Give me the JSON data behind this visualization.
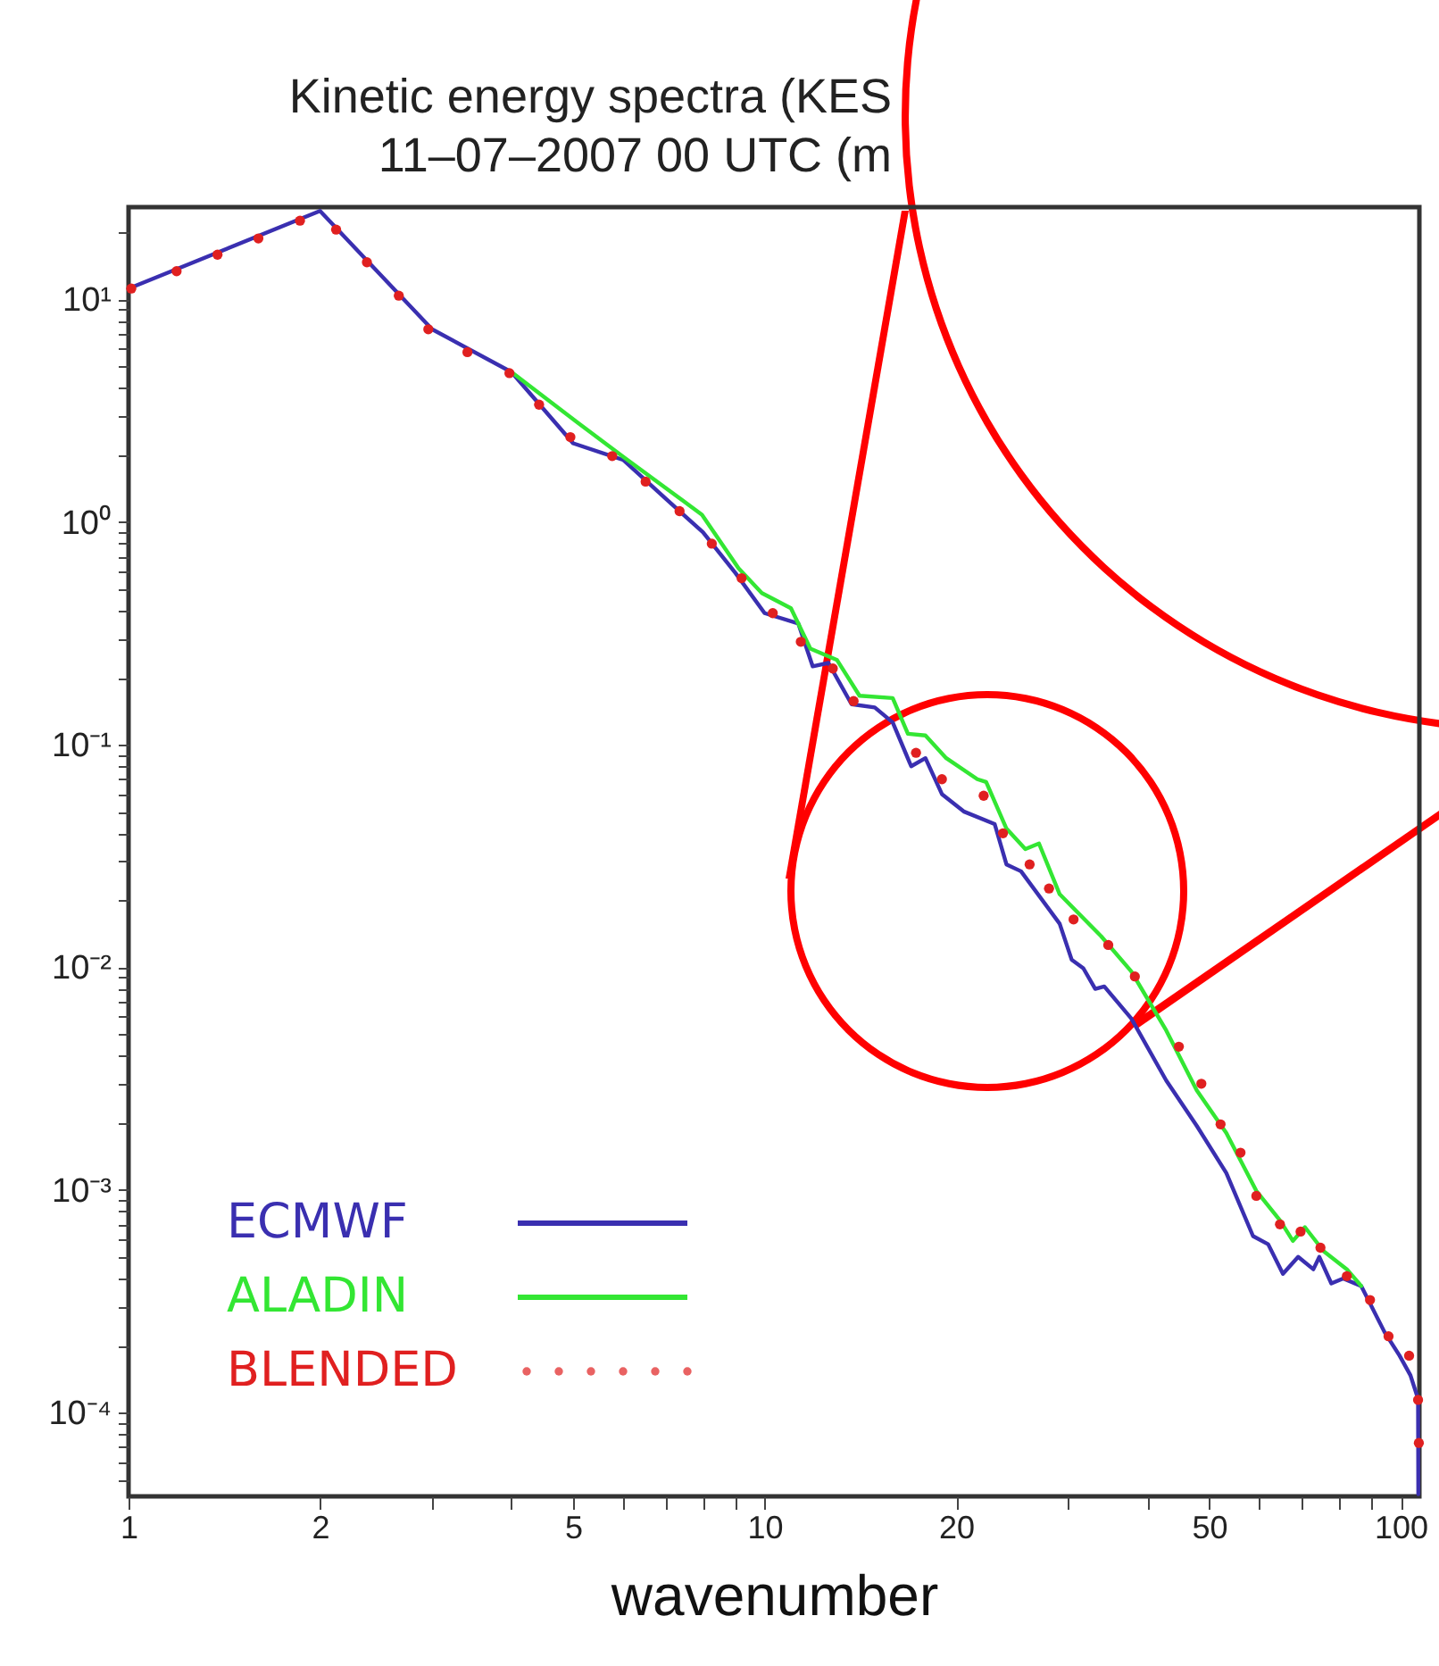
{
  "chart_data": {
    "type": "line",
    "title": "Kinetic energy spectra (KES",
    "subtitle": "11–07–2007 00 UTC (m",
    "xlabel": "wavenumber",
    "log": "xy",
    "legend": "bottom left",
    "xlim": [
      1,
      107
    ],
    "ylim": [
      4.2e-05,
      26
    ],
    "xticks": [
      1,
      2,
      {
        "value": 3,
        "label": null
      },
      {
        "value": 4,
        "label": null
      },
      5,
      {
        "value": 6,
        "label": null
      },
      {
        "value": 7,
        "label": null
      },
      {
        "value": 8,
        "label": null
      },
      {
        "value": 9,
        "label": null
      },
      10,
      20,
      {
        "value": 30,
        "label": null
      },
      {
        "value": 40,
        "label": null
      },
      50,
      {
        "value": 60,
        "label": null
      },
      {
        "value": 70,
        "label": null
      },
      {
        "value": 80,
        "label": null
      },
      {
        "value": 90,
        "label": null
      },
      100
    ],
    "yticks": [
      {
        "value": 5e-05,
        "label": null
      },
      {
        "value": 6e-05,
        "label": null
      },
      {
        "value": 7e-05,
        "label": null
      },
      {
        "value": 8e-05,
        "label": null
      },
      {
        "value": 9e-05,
        "label": null
      },
      {
        "value": 0.0001,
        "label": "10⁻⁴"
      },
      {
        "value": 0.0002,
        "label": null
      },
      {
        "value": 0.0003,
        "label": null
      },
      {
        "value": 0.0004,
        "label": null
      },
      {
        "value": 0.0005,
        "label": null
      },
      {
        "value": 0.0006,
        "label": null
      },
      {
        "value": 0.0007,
        "label": null
      },
      {
        "value": 0.0008,
        "label": null
      },
      {
        "value": 0.0009,
        "label": null
      },
      {
        "value": 0.001,
        "label": "10⁻³"
      },
      {
        "value": 0.002,
        "label": null
      },
      {
        "value": 0.003,
        "label": null
      },
      {
        "value": 0.004,
        "label": null
      },
      {
        "value": 0.005,
        "label": null
      },
      {
        "value": 0.006,
        "label": null
      },
      {
        "value": 0.007,
        "label": null
      },
      {
        "value": 0.008,
        "label": null
      },
      {
        "value": 0.009,
        "label": null
      },
      {
        "value": 0.01,
        "label": "10⁻²"
      },
      {
        "value": 0.02,
        "label": null
      },
      {
        "value": 0.03,
        "label": null
      },
      {
        "value": 0.04,
        "label": null
      },
      {
        "value": 0.05,
        "label": null
      },
      {
        "value": 0.06,
        "label": null
      },
      {
        "value": 0.07,
        "label": null
      },
      {
        "value": 0.08,
        "label": null
      },
      {
        "value": 0.09,
        "label": null
      },
      {
        "value": 0.1,
        "label": "10⁻¹"
      },
      {
        "value": 0.2,
        "label": null
      },
      {
        "value": 0.3,
        "label": null
      },
      {
        "value": 0.4,
        "label": null
      },
      {
        "value": 0.5,
        "label": null
      },
      {
        "value": 0.6,
        "label": null
      },
      {
        "value": 0.7,
        "label": null
      },
      {
        "value": 0.8,
        "label": null
      },
      {
        "value": 0.9,
        "label": null
      },
      {
        "value": 1,
        "label": "10⁰"
      },
      {
        "value": 2,
        "label": null
      },
      {
        "value": 3,
        "label": null
      },
      {
        "value": 4,
        "label": null
      },
      {
        "value": 5,
        "label": null
      },
      {
        "value": 6,
        "label": null
      },
      {
        "value": 7,
        "label": null
      },
      {
        "value": 8,
        "label": null
      },
      {
        "value": 9,
        "label": null
      },
      {
        "value": 10,
        "label": "10¹"
      },
      {
        "value": 20,
        "label": null
      }
    ],
    "series": [
      {
        "name": "ECMWF",
        "color": "#3a2fb0",
        "line_style": "solid",
        "x": [
          1,
          2,
          3,
          4,
          5,
          6,
          7,
          8,
          9,
          10,
          11.3,
          11.9,
          12.6,
          13.7,
          14.9,
          15.9,
          17,
          17.9,
          19,
          20.6,
          23,
          24,
          25.3,
          29.1,
          30.4,
          31.7,
          33.1,
          34.2,
          37.7,
          42.8,
          47.8,
          53.2,
          58.6,
          61.9,
          65.3,
          69,
          72.9,
          74.5,
          77.8,
          81.2,
          86.7,
          94.3,
          99.6,
          103.6,
          106.5,
          106.6
        ],
        "values": [
          11.2,
          25,
          7.35,
          4.72,
          2.26,
          1.9,
          1.27,
          0.9,
          0.59,
          0.39,
          0.35,
          0.225,
          0.233,
          0.152,
          0.147,
          0.126,
          0.08,
          0.087,
          0.06,
          0.05,
          0.044,
          0.029,
          0.027,
          0.0157,
          0.0108,
          0.0099,
          0.008,
          0.0082,
          0.0059,
          0.0031,
          0.00194,
          0.00119,
          0.00062,
          0.00057,
          0.00042,
          0.0005,
          0.00044,
          0.0005,
          0.00038,
          0.0004,
          0.00037,
          0.00023,
          0.00018,
          0.000147,
          0.000115,
          4.3e-05
        ]
      },
      {
        "name": "ALADIN",
        "color": "#33e633",
        "line_style": "solid",
        "x": [
          4,
          5.08,
          6.03,
          7.97,
          9.1,
          9.9,
          11,
          11.8,
          13,
          14.1,
          15.9,
          16.8,
          17.9,
          19.3,
          21.6,
          22.3,
          24,
          25.7,
          27,
          29.1,
          33.8,
          37.7,
          42.8,
          47.8,
          53.2,
          59.3,
          64.6,
          67.7,
          70.7,
          75.7,
          82.3,
          86.7
        ],
        "values": [
          4.72,
          2.8,
          1.94,
          1.08,
          0.62,
          0.48,
          0.41,
          0.27,
          0.24,
          0.166,
          0.162,
          0.112,
          0.11,
          0.087,
          0.07,
          0.068,
          0.042,
          0.034,
          0.036,
          0.0213,
          0.0138,
          0.0096,
          0.0052,
          0.0028,
          0.0018,
          0.00099,
          0.00073,
          0.00059,
          0.00068,
          0.00053,
          0.00044,
          0.00037
        ]
      },
      {
        "name": "BLENDED",
        "type": "scatter",
        "color": "#e02020",
        "marker": "circle",
        "x": [
          1.01,
          1.19,
          1.38,
          1.6,
          1.86,
          2.12,
          2.37,
          2.66,
          2.96,
          3.41,
          3.97,
          4.42,
          4.95,
          5.76,
          6.5,
          7.35,
          8.26,
          9.2,
          10.3,
          11.4,
          12.8,
          13.8,
          17.3,
          19,
          22.1,
          23.7,
          26.1,
          28,
          30.6,
          34.7,
          38.2,
          44.8,
          48.6,
          52.1,
          56,
          59.3,
          64.6,
          69.6,
          74.8,
          82.3,
          89.5,
          95.7,
          103.1,
          106.5,
          106.8
        ],
        "values": [
          11.2,
          13.4,
          15.9,
          18.8,
          22.6,
          20.6,
          14.7,
          10.4,
          7.35,
          5.8,
          4.67,
          3.37,
          2.41,
          1.98,
          1.52,
          1.12,
          0.8,
          0.56,
          0.39,
          0.29,
          0.22,
          0.157,
          0.092,
          0.07,
          0.059,
          0.04,
          0.029,
          0.0226,
          0.0164,
          0.0126,
          0.0091,
          0.0044,
          0.003,
          0.00197,
          0.00147,
          0.00094,
          0.0007,
          0.00065,
          0.00055,
          0.00041,
          0.00032,
          0.00022,
          0.00018,
          0.000114,
          7.3e-05
        ]
      }
    ]
  }
}
